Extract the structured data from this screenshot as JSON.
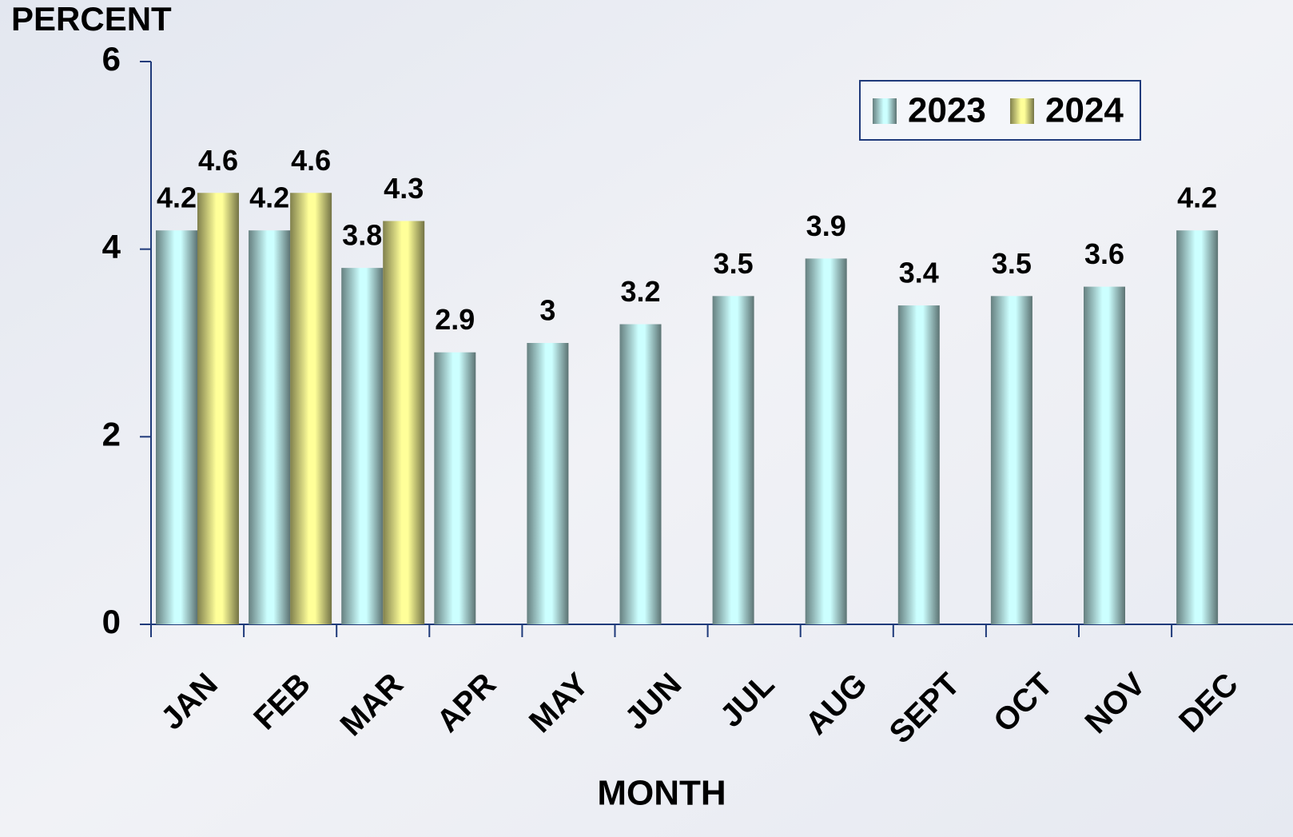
{
  "chart_data": {
    "type": "bar",
    "y_label": "PERCENT",
    "x_label": "MONTH",
    "categories": [
      "JAN",
      "FEB",
      "MAR",
      "APR",
      "MAY",
      "JUN",
      "JUL",
      "AUG",
      "SEPT",
      "OCT",
      "NOV",
      "DEC"
    ],
    "series": [
      {
        "name": "2023",
        "color": "#ccffff",
        "values": [
          4.2,
          4.2,
          3.8,
          2.9,
          3,
          3.2,
          3.5,
          3.9,
          3.4,
          3.5,
          3.6,
          4.2
        ]
      },
      {
        "name": "2024",
        "color": "#ffff99",
        "values": [
          4.6,
          4.6,
          4.3,
          null,
          null,
          null,
          null,
          null,
          null,
          null,
          null,
          null
        ]
      }
    ],
    "ylim": [
      0,
      6
    ],
    "yticks": [
      0,
      2,
      4,
      6
    ],
    "grid": false,
    "legend": "upper right"
  }
}
